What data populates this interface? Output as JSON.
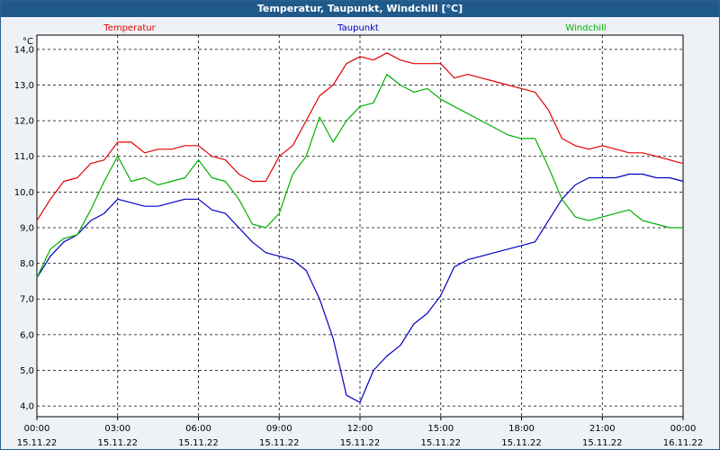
{
  "window": {
    "title": "Temperatur, Taupunkt, Windchill [°C]"
  },
  "chart_data": {
    "type": "line",
    "title": "Temperatur, Taupunkt, Windchill [°C]",
    "ylabel": "°C",
    "ylim": [
      3.7,
      14.4
    ],
    "grid": true,
    "legend_placement": "top",
    "y_ticks": [
      "4,0",
      "5,0",
      "6,0",
      "7,0",
      "8,0",
      "9,0",
      "10,0",
      "11,0",
      "12,0",
      "13,0",
      "14,0"
    ],
    "x_ticks": [
      {
        "time": "00:00",
        "date": "15.11.22"
      },
      {
        "time": "03:00",
        "date": "15.11.22"
      },
      {
        "time": "06:00",
        "date": "15.11.22"
      },
      {
        "time": "09:00",
        "date": "15.11.22"
      },
      {
        "time": "12:00",
        "date": "15.11.22"
      },
      {
        "time": "15:00",
        "date": "15.11.22"
      },
      {
        "time": "18:00",
        "date": "15.11.22"
      },
      {
        "time": "21:00",
        "date": "15.11.22"
      },
      {
        "time": "00:00",
        "date": "16.11.22"
      }
    ],
    "x_hours": [
      0,
      0.5,
      1,
      1.5,
      2,
      2.5,
      3,
      3.5,
      4,
      4.5,
      5,
      5.5,
      6,
      6.5,
      7,
      7.5,
      8,
      8.5,
      9,
      9.5,
      10,
      10.5,
      11,
      11.5,
      12,
      12.5,
      13,
      13.5,
      14,
      14.5,
      15,
      15.5,
      16,
      16.5,
      17,
      17.5,
      18,
      18.5,
      19,
      19.5,
      20,
      20.5,
      21,
      21.5,
      22,
      22.5,
      23,
      23.5,
      24
    ],
    "series": [
      {
        "name": "Temperatur",
        "color": "#e00000",
        "values": [
          9.2,
          9.8,
          10.3,
          10.4,
          10.8,
          10.9,
          11.4,
          11.4,
          11.1,
          11.2,
          11.2,
          11.3,
          11.3,
          11.0,
          10.9,
          10.5,
          10.3,
          10.3,
          11.0,
          11.3,
          12.0,
          12.7,
          13.0,
          13.6,
          13.8,
          13.7,
          13.9,
          13.7,
          13.6,
          13.6,
          13.6,
          13.2,
          13.3,
          13.2,
          13.1,
          13.0,
          12.9,
          12.8,
          12.3,
          11.5,
          11.3,
          11.2,
          11.3,
          11.2,
          11.1,
          11.1,
          11.0,
          10.9,
          10.8
        ]
      },
      {
        "name": "Taupunkt",
        "color": "#0000c0",
        "values": [
          7.6,
          8.2,
          8.6,
          8.8,
          9.2,
          9.4,
          9.8,
          9.7,
          9.6,
          9.6,
          9.7,
          9.8,
          9.8,
          9.5,
          9.4,
          9.0,
          8.6,
          8.3,
          8.2,
          8.1,
          7.8,
          7.0,
          5.9,
          4.3,
          4.1,
          5.0,
          5.4,
          5.7,
          6.3,
          6.6,
          7.1,
          7.9,
          8.1,
          8.2,
          8.3,
          8.4,
          8.5,
          8.6,
          9.2,
          9.8,
          10.2,
          10.4,
          10.4,
          10.4,
          10.5,
          10.5,
          10.4,
          10.4,
          10.3
        ]
      },
      {
        "name": "Windchill",
        "color": "#00b000",
        "values": [
          7.6,
          8.4,
          8.7,
          8.8,
          9.5,
          10.3,
          11.0,
          10.3,
          10.4,
          10.2,
          10.3,
          10.4,
          10.9,
          10.4,
          10.3,
          9.8,
          9.1,
          9.0,
          9.4,
          10.5,
          11.0,
          12.1,
          11.4,
          12.0,
          12.4,
          12.5,
          13.3,
          13.0,
          12.8,
          12.9,
          12.6,
          12.4,
          12.2,
          12.0,
          11.8,
          11.6,
          11.5,
          11.5,
          10.7,
          9.8,
          9.3,
          9.2,
          9.3,
          9.4,
          9.5,
          9.2,
          9.1,
          9.0,
          9.0
        ]
      }
    ]
  }
}
